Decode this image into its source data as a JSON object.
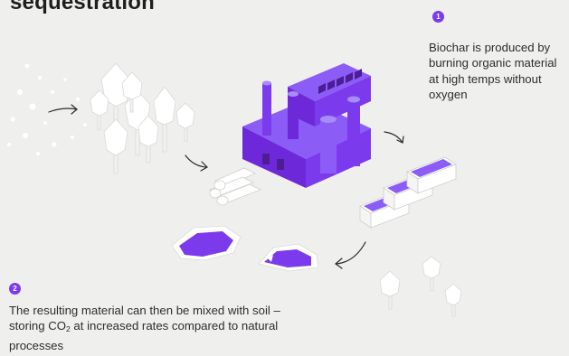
{
  "title": "sequestration",
  "steps": [
    {
      "number": "1",
      "text": "Biochar is produced by burning organic material at high temps without oxygen"
    },
    {
      "number": "2",
      "text_before": "The resulting material can then be mixed with soil – storing CO",
      "subscript": "2",
      "text_after": " at increased rates compared to natural processes"
    }
  ],
  "colors": {
    "accent": "#7c3aed",
    "background": "#efefed"
  }
}
